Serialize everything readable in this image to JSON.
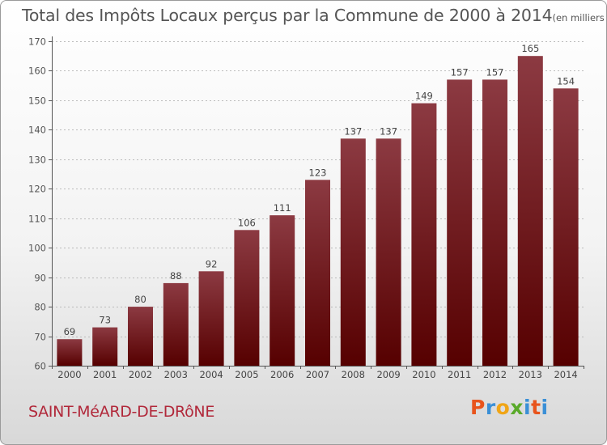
{
  "header": {
    "title": "Total des Impôts Locaux perçus par la Commune de 2000 à 2014",
    "unit": "(en milliers d'€)"
  },
  "footer": {
    "commune": "SAINT-MéARD-DE-DRôNE",
    "logo_letters": [
      "P",
      "r",
      "o",
      "x",
      "i",
      "t",
      "i"
    ],
    "logo_colors": [
      "#e8541c",
      "#3a8fd6",
      "#f0a516",
      "#5aaa2a",
      "#3a8fd6",
      "#e8541c",
      "#3a8fd6"
    ]
  },
  "chart_data": {
    "type": "bar",
    "title": "Total des Impôts Locaux perçus par la Commune de 2000 à 2014",
    "categories": [
      "2000",
      "2001",
      "2002",
      "2003",
      "2004",
      "2005",
      "2006",
      "2007",
      "2008",
      "2009",
      "2010",
      "2011",
      "2012",
      "2013",
      "2014"
    ],
    "values": [
      69,
      73,
      80,
      88,
      92,
      106,
      111,
      123,
      137,
      137,
      149,
      157,
      157,
      165,
      154
    ],
    "data_labels": [
      "69",
      "73",
      "80",
      "88",
      "92",
      "106",
      "111",
      "123",
      "137",
      "137",
      "149",
      "157",
      "157",
      "165",
      "154"
    ],
    "ylim": [
      60,
      170
    ],
    "yticks": [
      60,
      70,
      80,
      90,
      100,
      110,
      120,
      130,
      140,
      150,
      160,
      170
    ],
    "grid": true,
    "colors": {
      "bar_top": "#8c3a42",
      "bar_bottom": "#560000",
      "grid": "#bbbbbb",
      "axis": "#555555"
    }
  }
}
